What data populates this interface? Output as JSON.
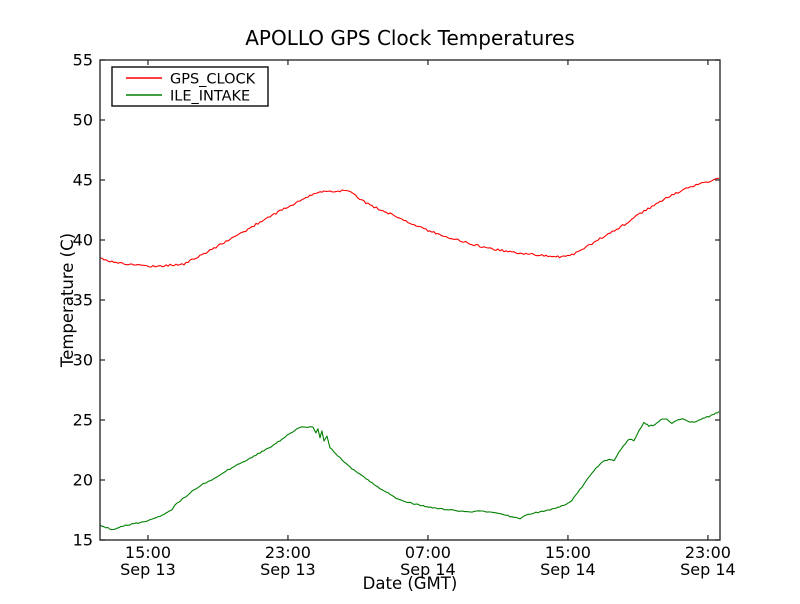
{
  "window": {
    "title": "APOLLO GPS Clock Temperatures"
  },
  "chart_data": {
    "type": "line",
    "title": "APOLLO GPS Clock Temperatures",
    "xlabel": "Date (GMT)",
    "ylabel": "Temperature (C)",
    "x_unit": "hours since Sep 13 00:00 GMT",
    "xlim": [
      12.26,
      47.69
    ],
    "ylim": [
      15,
      55
    ],
    "grid": false,
    "legend_position": "upper left",
    "x_ticks": [
      {
        "value": 15,
        "time": "15:00",
        "date": "Sep 13"
      },
      {
        "value": 23,
        "time": "23:00",
        "date": "Sep 13"
      },
      {
        "value": 31,
        "time": "07:00",
        "date": "Sep 14"
      },
      {
        "value": 39,
        "time": "15:00",
        "date": "Sep 14"
      },
      {
        "value": 47,
        "time": "23:00",
        "date": "Sep 14"
      }
    ],
    "y_ticks": [
      15,
      20,
      25,
      30,
      35,
      40,
      45,
      50,
      55
    ],
    "series": [
      {
        "name": "GPS_CLOCK",
        "color": "#ff0000",
        "noise": 0.09,
        "points": [
          [
            12.26,
            38.5
          ],
          [
            12.94,
            38.2
          ],
          [
            13.74,
            38.0
          ],
          [
            14.54,
            37.9
          ],
          [
            15.4,
            37.8
          ],
          [
            16.26,
            37.9
          ],
          [
            17.06,
            38.0
          ],
          [
            17.86,
            38.6
          ],
          [
            18.66,
            39.2
          ],
          [
            19.46,
            39.9
          ],
          [
            20.26,
            40.5
          ],
          [
            21.06,
            41.2
          ],
          [
            21.86,
            41.9
          ],
          [
            22.66,
            42.5
          ],
          [
            23.46,
            43.1
          ],
          [
            24.14,
            43.6
          ],
          [
            24.83,
            44.0
          ],
          [
            25.4,
            44.1
          ],
          [
            25.86,
            44.05
          ],
          [
            26.2,
            44.2
          ],
          [
            26.46,
            44.15
          ],
          [
            26.74,
            43.85
          ],
          [
            27.34,
            43.2
          ],
          [
            27.8,
            42.85
          ],
          [
            28.31,
            42.5
          ],
          [
            28.94,
            42.1
          ],
          [
            29.63,
            41.7
          ],
          [
            30.31,
            41.2
          ],
          [
            31.0,
            40.8
          ],
          [
            31.8,
            40.4
          ],
          [
            32.71,
            40.0
          ],
          [
            33.63,
            39.6
          ],
          [
            34.54,
            39.3
          ],
          [
            35.46,
            39.05
          ],
          [
            36.37,
            38.9
          ],
          [
            37.29,
            38.75
          ],
          [
            38.09,
            38.65
          ],
          [
            38.63,
            38.6
          ],
          [
            39.11,
            38.7
          ],
          [
            39.57,
            39.0
          ],
          [
            40.14,
            39.5
          ],
          [
            40.71,
            40.0
          ],
          [
            41.29,
            40.5
          ],
          [
            41.91,
            41.0
          ],
          [
            42.54,
            41.6
          ],
          [
            43.23,
            42.3
          ],
          [
            44.03,
            43.0
          ],
          [
            44.83,
            43.65
          ],
          [
            45.63,
            44.2
          ],
          [
            46.43,
            44.65
          ],
          [
            47.11,
            44.9
          ],
          [
            47.63,
            45.15
          ]
        ]
      },
      {
        "name": "ILE_INTAKE",
        "color": "#008000",
        "noise": 0.05,
        "points": [
          [
            12.26,
            16.25
          ],
          [
            12.71,
            16.0
          ],
          [
            13.0,
            15.85
          ],
          [
            13.46,
            16.15
          ],
          [
            14.2,
            16.35
          ],
          [
            14.94,
            16.6
          ],
          [
            15.57,
            16.9
          ],
          [
            16.03,
            17.2
          ],
          [
            16.37,
            17.5
          ],
          [
            16.54,
            17.95
          ],
          [
            17.06,
            18.5
          ],
          [
            17.63,
            19.2
          ],
          [
            18.2,
            19.7
          ],
          [
            18.66,
            20.05
          ],
          [
            19.34,
            20.65
          ],
          [
            20.14,
            21.3
          ],
          [
            20.94,
            21.9
          ],
          [
            21.74,
            22.55
          ],
          [
            22.54,
            23.25
          ],
          [
            23.17,
            23.95
          ],
          [
            23.69,
            24.4
          ],
          [
            24.14,
            24.35
          ],
          [
            24.43,
            24.45
          ],
          [
            24.6,
            23.9
          ],
          [
            24.71,
            24.3
          ],
          [
            24.83,
            23.5
          ],
          [
            24.94,
            24.1
          ],
          [
            25.06,
            23.3
          ],
          [
            25.23,
            23.7
          ],
          [
            25.4,
            22.7
          ],
          [
            26.09,
            21.7
          ],
          [
            26.77,
            20.8
          ],
          [
            27.57,
            20.0
          ],
          [
            28.37,
            19.2
          ],
          [
            29.17,
            18.5
          ],
          [
            29.97,
            18.1
          ],
          [
            30.83,
            17.8
          ],
          [
            31.69,
            17.6
          ],
          [
            32.54,
            17.45
          ],
          [
            33.4,
            17.35
          ],
          [
            34.14,
            17.4
          ],
          [
            34.89,
            17.25
          ],
          [
            35.46,
            17.05
          ],
          [
            35.91,
            16.9
          ],
          [
            36.26,
            16.75
          ],
          [
            36.66,
            17.1
          ],
          [
            37.06,
            17.25
          ],
          [
            37.63,
            17.4
          ],
          [
            38.2,
            17.6
          ],
          [
            38.77,
            17.9
          ],
          [
            39.23,
            18.3
          ],
          [
            39.69,
            19.2
          ],
          [
            40.14,
            20.1
          ],
          [
            40.6,
            21.0
          ],
          [
            41.0,
            21.5
          ],
          [
            41.34,
            21.7
          ],
          [
            41.63,
            21.6
          ],
          [
            41.91,
            22.3
          ],
          [
            42.2,
            22.9
          ],
          [
            42.49,
            23.4
          ],
          [
            42.77,
            23.3
          ],
          [
            43.06,
            24.1
          ],
          [
            43.34,
            24.8
          ],
          [
            43.63,
            24.5
          ],
          [
            43.97,
            24.6
          ],
          [
            44.31,
            25.0
          ],
          [
            44.66,
            25.1
          ],
          [
            44.94,
            24.7
          ],
          [
            45.29,
            25.0
          ],
          [
            45.63,
            25.1
          ],
          [
            45.97,
            24.8
          ],
          [
            46.37,
            24.85
          ],
          [
            46.71,
            25.15
          ],
          [
            47.06,
            25.3
          ],
          [
            47.34,
            25.5
          ],
          [
            47.63,
            25.7
          ]
        ]
      }
    ]
  }
}
